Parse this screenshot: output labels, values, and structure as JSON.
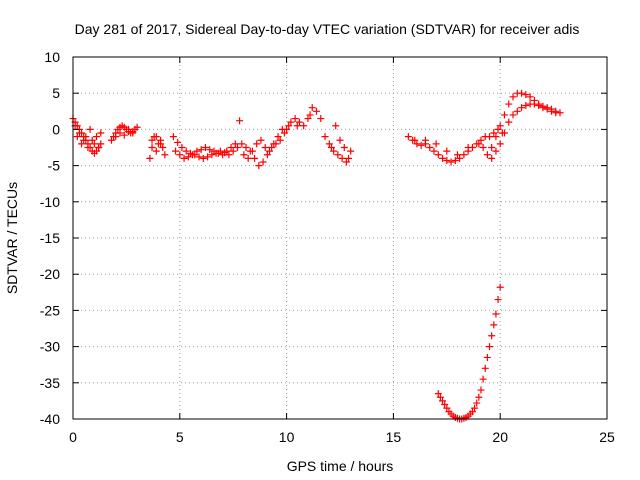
{
  "chart_data": {
    "type": "scatter",
    "title": "Day 281 of 2017, Sidereal Day-to-day VTEC variation (SDTVAR) for receiver adis",
    "xlabel": "GPS time / hours",
    "ylabel": "SDTVAR / TECUs",
    "xlim": [
      0,
      25
    ],
    "ylim": [
      -40,
      10
    ],
    "xticks": [
      0,
      5,
      10,
      15,
      20,
      25
    ],
    "yticks": [
      10,
      5,
      0,
      -5,
      -10,
      -15,
      -20,
      -25,
      -30,
      -35,
      -40
    ],
    "grid": true,
    "marker": "plus",
    "color": "#ff0000",
    "series": [
      {
        "name": "segment-1",
        "x": [
          0.0,
          0.1,
          0.2,
          0.3,
          0.4,
          0.5,
          0.6,
          0.7,
          0.8,
          0.9,
          1.0,
          1.1,
          1.2,
          1.3,
          0.1,
          0.3,
          0.5,
          0.7,
          0.9,
          1.1,
          1.3,
          0.2,
          0.4,
          0.6,
          0.8,
          1.0,
          1.2
        ],
        "y": [
          1.5,
          1.0,
          0.5,
          0.0,
          -0.5,
          -1.0,
          -1.5,
          -2.0,
          -2.5,
          -3.0,
          -3.3,
          -3.0,
          -2.5,
          -2.0,
          0.5,
          -0.5,
          -1.5,
          -2.5,
          -1.5,
          -1.0,
          -0.5,
          -1.0,
          -2.0,
          -1.0,
          0.0,
          -2.0,
          -2.5
        ]
      },
      {
        "name": "segment-2",
        "x": [
          1.8,
          1.9,
          2.0,
          2.1,
          2.2,
          2.3,
          2.4,
          2.5,
          2.6,
          2.7,
          2.8,
          2.9,
          3.0,
          2.0,
          2.2,
          2.4,
          2.6,
          2.8
        ],
        "y": [
          -1.5,
          -1.0,
          -0.5,
          0.0,
          0.3,
          0.5,
          0.3,
          0.0,
          -0.3,
          -0.5,
          -0.3,
          0.0,
          0.3,
          -1.0,
          -0.5,
          -0.8,
          0.0,
          -0.5
        ]
      },
      {
        "name": "segment-3",
        "x": [
          3.6,
          3.7,
          3.8,
          3.9,
          4.0,
          4.1,
          4.2,
          4.3,
          3.7,
          3.9,
          4.1
        ],
        "y": [
          -4.0,
          -2.5,
          -1.0,
          -3.0,
          -2.0,
          -1.5,
          -2.5,
          -3.5,
          -1.5,
          -1.0,
          -2.0
        ]
      },
      {
        "name": "segment-4",
        "x": [
          4.7,
          4.9,
          5.1,
          5.3,
          5.5,
          5.7,
          5.9,
          6.1,
          6.3,
          6.5,
          6.7,
          6.9,
          7.1,
          7.3,
          7.5,
          7.7,
          4.8,
          5.0,
          5.2,
          5.4,
          5.6,
          5.8,
          6.0,
          6.2,
          6.4,
          6.6,
          6.8,
          7.0,
          7.2,
          7.4,
          7.6,
          7.8
        ],
        "y": [
          -1.0,
          -1.8,
          -2.5,
          -3.0,
          -3.3,
          -3.5,
          -3.8,
          -4.0,
          -3.8,
          -3.5,
          -3.3,
          -3.0,
          -3.2,
          -3.5,
          -3.0,
          -2.5,
          -3.0,
          -3.5,
          -4.0,
          -3.8,
          -3.5,
          -3.0,
          -2.8,
          -2.5,
          -2.8,
          -3.0,
          -3.3,
          -3.5,
          -3.0,
          -2.5,
          -2.0,
          1.2
        ]
      },
      {
        "name": "segment-5",
        "x": [
          7.9,
          8.1,
          8.3,
          8.5,
          8.7,
          8.9,
          9.1,
          9.3,
          9.5,
          9.7,
          9.9,
          10.1,
          8.0,
          8.2,
          8.4,
          8.6,
          8.8,
          9.0,
          9.2,
          9.4,
          9.6,
          9.8
        ],
        "y": [
          -2.0,
          -2.5,
          -3.0,
          -4.0,
          -5.0,
          -4.5,
          -3.5,
          -2.5,
          -2.0,
          -1.5,
          -0.5,
          0.5,
          -3.5,
          -4.0,
          -3.0,
          -2.0,
          -1.5,
          -2.5,
          -3.0,
          -2.0,
          -1.0,
          0.0
        ]
      },
      {
        "name": "segment-6",
        "x": [
          10.0,
          10.2,
          10.4,
          10.6,
          10.8,
          11.0,
          11.2,
          11.4,
          11.6,
          11.8,
          12.0,
          12.2,
          12.4,
          12.6,
          12.8,
          13.0,
          10.5,
          11.1,
          12.1,
          12.3,
          12.5,
          12.7,
          12.9
        ],
        "y": [
          0.0,
          1.0,
          1.5,
          1.0,
          0.5,
          1.5,
          3.0,
          2.5,
          1.5,
          -1.0,
          -2.0,
          -3.0,
          -3.5,
          -4.0,
          -4.5,
          -3.0,
          0.5,
          2.0,
          -2.5,
          0.5,
          -1.5,
          -2.5,
          -4.0
        ]
      },
      {
        "name": "segment-7",
        "x": [
          15.7,
          15.9,
          16.1,
          16.3,
          16.5,
          16.7,
          16.9,
          17.1,
          17.3,
          17.5,
          17.7,
          17.9,
          18.1,
          18.3,
          18.5,
          18.7,
          18.9,
          19.1,
          19.3,
          19.5,
          19.7,
          19.9,
          20.1
        ],
        "y": [
          -1.0,
          -1.5,
          -2.0,
          -2.2,
          -2.0,
          -2.5,
          -3.0,
          -3.5,
          -4.0,
          -4.3,
          -4.5,
          -4.3,
          -4.0,
          -3.5,
          -3.0,
          -2.5,
          -2.0,
          -1.5,
          -1.0,
          -1.0,
          -0.5,
          0.0,
          -0.5
        ]
      },
      {
        "name": "segment-8",
        "x": [
          16.0,
          16.5,
          17.0,
          17.5,
          18.0,
          18.5,
          19.0,
          19.2,
          19.4,
          19.6,
          19.8,
          20.0,
          20.2,
          20.4,
          20.6,
          20.8,
          21.0,
          21.2,
          21.4,
          21.6,
          21.8,
          22.0,
          22.2,
          22.4,
          22.6,
          22.8
        ],
        "y": [
          -1.5,
          -1.5,
          -2.0,
          -3.0,
          -3.5,
          -2.5,
          -2.0,
          -2.5,
          -3.5,
          -4.0,
          -3.0,
          -2.0,
          -0.5,
          1.0,
          2.0,
          2.5,
          3.0,
          3.3,
          3.5,
          3.5,
          3.3,
          3.0,
          2.8,
          2.5,
          2.3,
          2.3
        ]
      },
      {
        "name": "segment-9",
        "x": [
          19.6,
          19.8,
          20.0,
          20.2,
          20.4,
          20.6,
          20.8,
          21.0,
          21.2,
          21.4,
          21.6,
          21.8,
          22.0,
          22.2,
          22.4,
          22.6
        ],
        "y": [
          -2.5,
          -1.0,
          0.5,
          2.0,
          3.5,
          4.5,
          5.0,
          5.0,
          4.8,
          4.5,
          4.0,
          3.5,
          3.2,
          3.0,
          2.8,
          2.5
        ]
      },
      {
        "name": "segment-10",
        "x": [
          17.1,
          17.2,
          17.3,
          17.4,
          17.5,
          17.6,
          17.7,
          17.8,
          17.9,
          18.0,
          18.1,
          18.2,
          18.3,
          18.4,
          18.5,
          18.6,
          18.7,
          18.8,
          18.9,
          19.0,
          19.1,
          19.2,
          19.3,
          19.4,
          19.5,
          19.6,
          19.7,
          19.8,
          19.9,
          20.0
        ],
        "y": [
          -36.5,
          -37.0,
          -37.5,
          -38.0,
          -38.5,
          -39.0,
          -39.3,
          -39.6,
          -39.8,
          -39.9,
          -40.0,
          -40.0,
          -39.9,
          -39.8,
          -39.6,
          -39.3,
          -39.0,
          -38.5,
          -37.8,
          -37.0,
          -36.0,
          -34.5,
          -33.0,
          -31.5,
          -30.0,
          -28.5,
          -27.0,
          -25.5,
          -23.5,
          -21.8
        ]
      }
    ]
  }
}
